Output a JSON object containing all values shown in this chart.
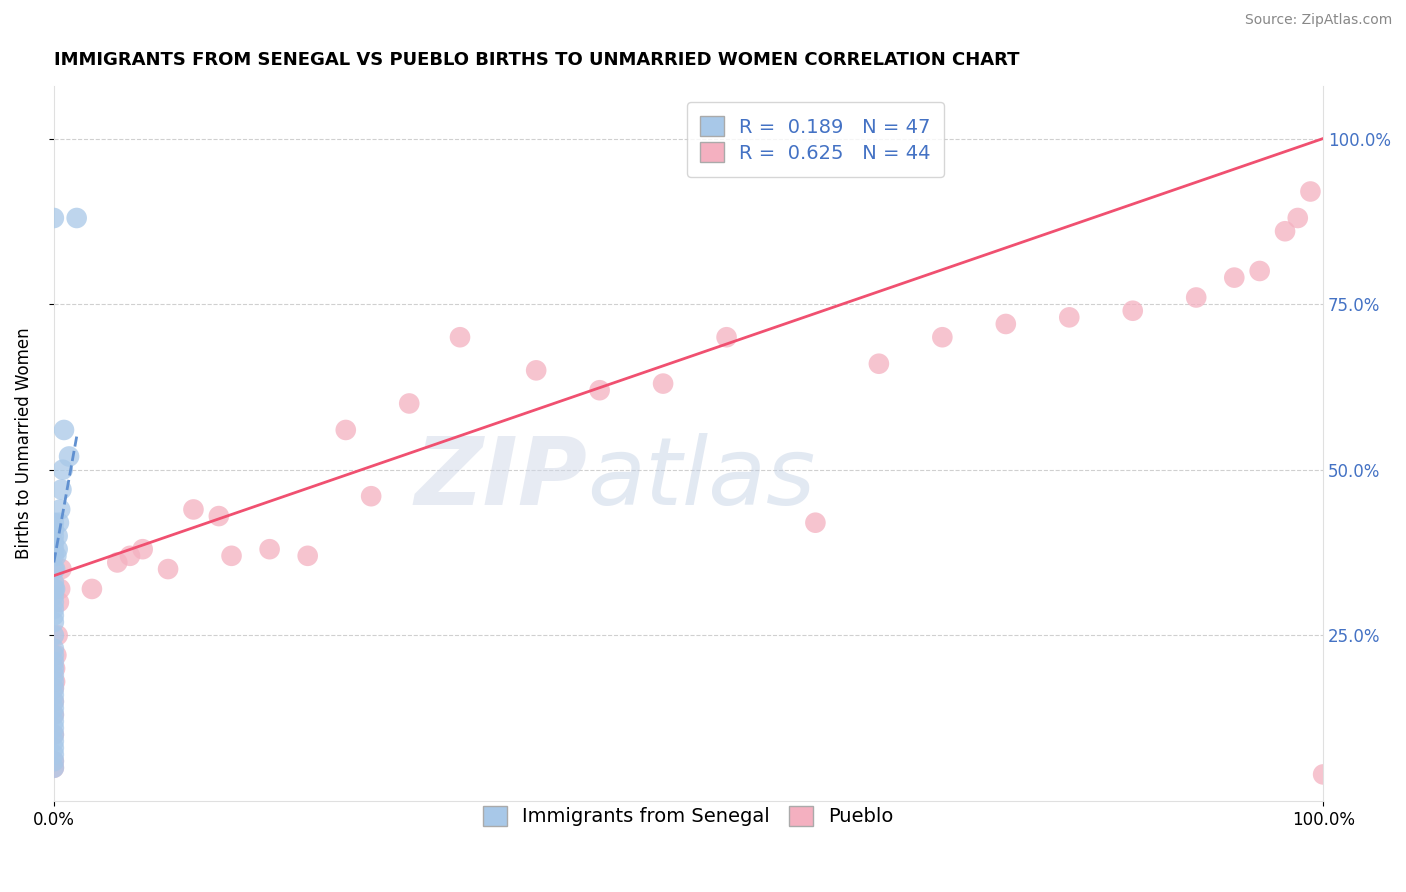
{
  "title": "IMMIGRANTS FROM SENEGAL VS PUEBLO BIRTHS TO UNMARRIED WOMEN CORRELATION CHART",
  "source": "Source: ZipAtlas.com",
  "ylabel": "Births to Unmarried Women",
  "legend_series1_label": "Immigrants from Senegal",
  "legend_series2_label": "Pueblo",
  "r1": 0.189,
  "n1": 47,
  "r2": 0.625,
  "n2": 44,
  "color_blue": "#A8C8E8",
  "color_pink": "#F4B0C0",
  "trendline_blue": "#6090D0",
  "trendline_pink": "#F05070",
  "blue_scatter_x": [
    0.0,
    0.0,
    0.0,
    0.0,
    0.0,
    0.0,
    0.0,
    0.0,
    0.0,
    0.0,
    0.0,
    0.0,
    0.0,
    0.0,
    0.0,
    0.0,
    0.0,
    0.0,
    0.0,
    0.0,
    0.0,
    0.0,
    0.0,
    0.0,
    0.0,
    0.0,
    0.0,
    0.0,
    0.0,
    0.0,
    0.0,
    0.0,
    0.0,
    0.0,
    0.0,
    0.001,
    0.001,
    0.002,
    0.003,
    0.003,
    0.004,
    0.005,
    0.006,
    0.007,
    0.008,
    0.012,
    0.018
  ],
  "blue_scatter_y": [
    0.05,
    0.06,
    0.07,
    0.08,
    0.09,
    0.1,
    0.11,
    0.12,
    0.13,
    0.14,
    0.15,
    0.16,
    0.17,
    0.18,
    0.19,
    0.2,
    0.21,
    0.22,
    0.23,
    0.25,
    0.27,
    0.28,
    0.29,
    0.3,
    0.31,
    0.32,
    0.33,
    0.35,
    0.37,
    0.38,
    0.39,
    0.4,
    0.41,
    0.42,
    0.88,
    0.32,
    0.35,
    0.37,
    0.38,
    0.4,
    0.42,
    0.44,
    0.47,
    0.5,
    0.56,
    0.52,
    0.88
  ],
  "pink_scatter_x": [
    0.0,
    0.0,
    0.0,
    0.0,
    0.0,
    0.0,
    0.001,
    0.001,
    0.002,
    0.003,
    0.004,
    0.005,
    0.006,
    0.03,
    0.05,
    0.06,
    0.07,
    0.09,
    0.11,
    0.13,
    0.14,
    0.17,
    0.2,
    0.23,
    0.25,
    0.28,
    0.32,
    0.38,
    0.43,
    0.48,
    0.53,
    0.6,
    0.65,
    0.7,
    0.75,
    0.8,
    0.85,
    0.9,
    0.93,
    0.95,
    0.97,
    0.98,
    0.99,
    1.0
  ],
  "pink_scatter_y": [
    0.05,
    0.06,
    0.1,
    0.13,
    0.15,
    0.17,
    0.18,
    0.2,
    0.22,
    0.25,
    0.3,
    0.32,
    0.35,
    0.32,
    0.36,
    0.37,
    0.38,
    0.35,
    0.44,
    0.43,
    0.37,
    0.38,
    0.37,
    0.56,
    0.46,
    0.6,
    0.7,
    0.65,
    0.62,
    0.63,
    0.7,
    0.42,
    0.66,
    0.7,
    0.72,
    0.73,
    0.74,
    0.76,
    0.79,
    0.8,
    0.86,
    0.88,
    0.92,
    0.04
  ],
  "blue_trend_x": [
    0.0,
    0.018
  ],
  "blue_trend_y": [
    0.36,
    0.55
  ],
  "pink_trend_x": [
    0.0,
    1.0
  ],
  "pink_trend_y": [
    0.34,
    1.0
  ],
  "xlim": [
    0,
    1.0
  ],
  "ylim": [
    0,
    1.08
  ],
  "yticks": [
    0.25,
    0.5,
    0.75,
    1.0
  ],
  "ytick_labels": [
    "25.0%",
    "50.0%",
    "75.0%",
    "100.0%"
  ],
  "xticks": [
    0.0,
    1.0
  ],
  "xtick_labels": [
    "0.0%",
    "100.0%"
  ],
  "watermark_zip": "ZIP",
  "watermark_atlas": "atlas",
  "background_color": "#ffffff",
  "grid_color": "#d0d0d0",
  "right_tick_color": "#4472C4",
  "title_fontsize": 13,
  "source_fontsize": 10,
  "ylabel_fontsize": 12,
  "legend_fontsize": 14,
  "tick_fontsize": 12
}
